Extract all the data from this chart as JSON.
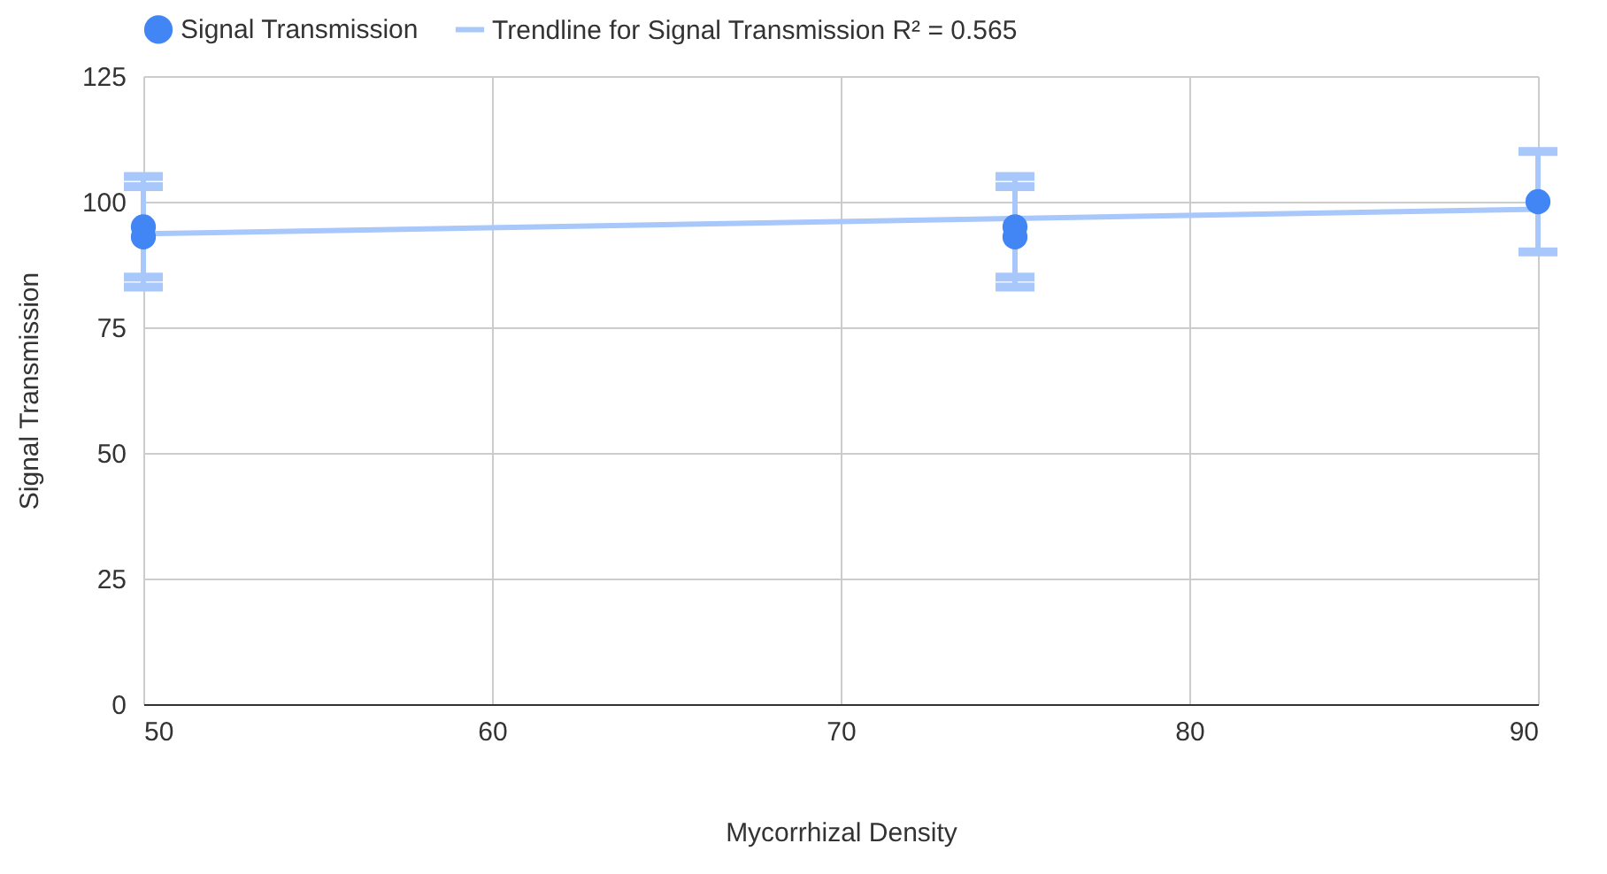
{
  "chart_data": {
    "type": "scatter",
    "xlabel": "Mycorrhizal Density",
    "ylabel": "Signal Transmission",
    "xlim": [
      50,
      90
    ],
    "xticks": [
      50,
      60,
      70,
      80,
      90
    ],
    "ylim": [
      0,
      125
    ],
    "yticks": [
      0,
      25,
      50,
      75,
      100,
      125
    ],
    "grid": true,
    "legend": "top",
    "series": [
      {
        "name": "Signal Transmission",
        "marker": "circle",
        "color": "#4285f4",
        "x": [
          50,
          50,
          75,
          75,
          90
        ],
        "values": [
          95,
          93,
          95,
          93,
          100
        ],
        "errors": [
          10,
          10,
          10,
          10,
          10
        ]
      },
      {
        "name": "Trendline for Signal Transmission R² = 0.565",
        "type": "line",
        "color": "#a8c7fa",
        "line_style": "solid",
        "x": [
          50,
          90
        ],
        "values": [
          93.6,
          98.5
        ]
      }
    ]
  }
}
